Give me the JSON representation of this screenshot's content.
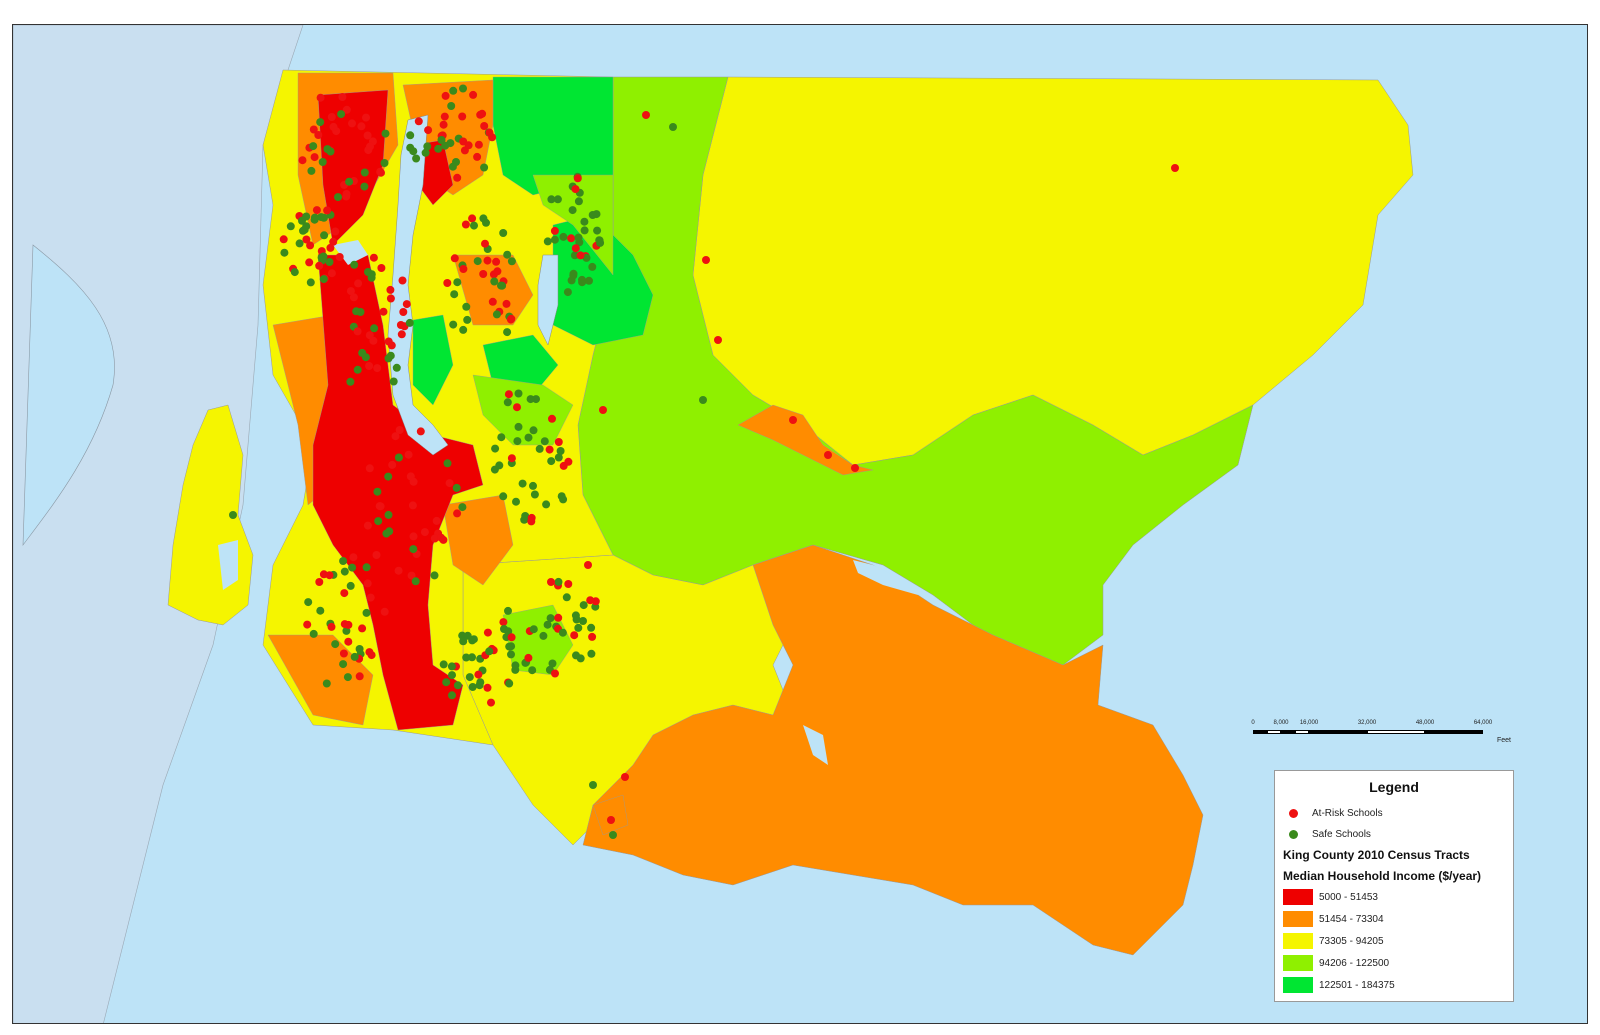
{
  "legend": {
    "title": "Legend",
    "points": [
      {
        "label": "At-Risk Schools",
        "color": "#ee1111"
      },
      {
        "label": "Safe Schools",
        "color": "#3a8a1c"
      }
    ],
    "heading1": "King County 2010 Census Tracts",
    "heading2": "Median Household Income ($/year)",
    "classes": [
      {
        "label": "5000 - 51453",
        "color": "#ee0000"
      },
      {
        "label": "51454 - 73304",
        "color": "#ff8c00"
      },
      {
        "label": "73305 - 94205",
        "color": "#f5f500"
      },
      {
        "label": "94206 - 122500",
        "color": "#8ff000"
      },
      {
        "label": "122501 - 184375",
        "color": "#00e632"
      }
    ]
  },
  "scale_bar": {
    "ticks": [
      "0",
      "8,000",
      "16,000",
      "32,000",
      "48,000",
      "64,000"
    ],
    "unit": "Feet"
  },
  "colors": {
    "water": "#bde3f7",
    "land_outside": "#c9dff0",
    "boundary": "#888888"
  }
}
